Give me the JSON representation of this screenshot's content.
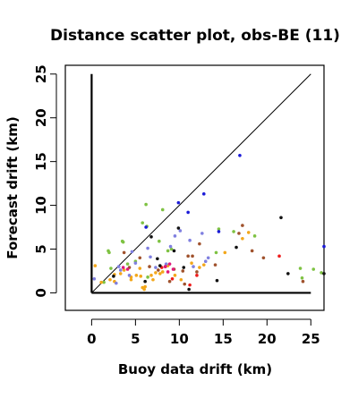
{
  "chart_data": {
    "type": "scatter",
    "title": "Distance scatter plot, obs-BE (11)",
    "xlabel": "Buoy data drift (km)",
    "ylabel": "Forecast drift (km)",
    "xlim": [
      -3,
      26.5
    ],
    "ylim": [
      -2,
      26
    ],
    "x_ticks": [
      0,
      5,
      10,
      15,
      20,
      25
    ],
    "y_ticks": [
      0,
      5,
      10,
      15,
      20,
      25
    ],
    "x_tick_labels": [
      "0",
      "5",
      "10",
      "15",
      "20",
      "25"
    ],
    "y_tick_labels": [
      "0",
      "5",
      "10",
      "15",
      "20",
      "25"
    ],
    "grid": false,
    "reference_lines": [
      {
        "x": [
          0,
          25
        ],
        "y": [
          0,
          25
        ]
      },
      {
        "x": [
          0,
          0
        ],
        "y": [
          0,
          25
        ]
      },
      {
        "x": [
          0,
          25
        ],
        "y": [
          0,
          0
        ]
      }
    ],
    "series": [
      {
        "color": "#7ec242",
        "points": [
          [
            1.9,
            4.8
          ],
          [
            2.0,
            4.6
          ],
          [
            3.5,
            5.9
          ],
          [
            3.6,
            5.8
          ],
          [
            5.8,
            8.0
          ],
          [
            6.2,
            10.1
          ],
          [
            6.3,
            7.6
          ],
          [
            8.1,
            9.5
          ],
          [
            7.7,
            5.9
          ],
          [
            8.7,
            4.8
          ],
          [
            9.1,
            5.0
          ],
          [
            5.0,
            3.6
          ],
          [
            2.2,
            2.8
          ],
          [
            14.2,
            4.6
          ],
          [
            14.5,
            7.3
          ],
          [
            16.2,
            7.0
          ],
          [
            18.6,
            6.5
          ],
          [
            23.8,
            2.8
          ],
          [
            25.3,
            2.7
          ],
          [
            26.2,
            2.3
          ],
          [
            24.0,
            1.7
          ],
          [
            6.4,
            1.8
          ],
          [
            4.1,
            3.3
          ],
          [
            1.4,
            1.2
          ]
        ]
      },
      {
        "color": "#f3a71b",
        "points": [
          [
            0.4,
            3.1
          ],
          [
            1.1,
            1.2
          ],
          [
            2.1,
            1.5
          ],
          [
            2.6,
            2.1
          ],
          [
            3.3,
            2.2
          ],
          [
            3.7,
            2.6
          ],
          [
            4.5,
            1.8
          ],
          [
            5.1,
            2.0
          ],
          [
            5.6,
            1.9
          ],
          [
            5.8,
            0.6
          ],
          [
            6.1,
            0.7
          ],
          [
            6.0,
            0.4
          ],
          [
            5.5,
            2.8
          ],
          [
            6.8,
            2.0
          ],
          [
            7.3,
            2.3
          ],
          [
            7.8,
            2.2
          ],
          [
            8.1,
            2.4
          ],
          [
            8.7,
            3.1
          ],
          [
            9.5,
            2.0
          ],
          [
            10.2,
            1.5
          ],
          [
            11.4,
            3.4
          ],
          [
            12.3,
            2.9
          ],
          [
            12.8,
            3.2
          ],
          [
            15.2,
            4.6
          ],
          [
            17.2,
            6.2
          ],
          [
            17.9,
            6.9
          ],
          [
            2.6,
            1.3
          ],
          [
            4.5,
            1.5
          ],
          [
            7.0,
            1.5
          ]
        ]
      },
      {
        "color": "#8080e0",
        "points": [
          [
            3.1,
            3.0
          ],
          [
            3.3,
            2.6
          ],
          [
            4.3,
            2.0
          ],
          [
            5.0,
            3.4
          ],
          [
            6.4,
            5.1
          ],
          [
            6.7,
            4.1
          ],
          [
            7.3,
            2.9
          ],
          [
            8.5,
            3.3
          ],
          [
            9.5,
            6.5
          ],
          [
            10.1,
            7.1
          ],
          [
            11.2,
            6.0
          ],
          [
            12.6,
            6.8
          ],
          [
            13.0,
            3.6
          ],
          [
            13.3,
            4.0
          ],
          [
            11.6,
            3.0
          ],
          [
            0.3,
            1.6
          ],
          [
            2.8,
            1.1
          ],
          [
            4.6,
            4.7
          ],
          [
            9.0,
            5.3
          ]
        ]
      },
      {
        "color": "#a0522d",
        "points": [
          [
            4.3,
            2.9
          ],
          [
            5.5,
            4.0
          ],
          [
            6.6,
            3.0
          ],
          [
            7.6,
            2.6
          ],
          [
            8.4,
            3.0
          ],
          [
            8.9,
            1.3
          ],
          [
            9.4,
            2.7
          ],
          [
            10.6,
            1.0
          ],
          [
            11.0,
            4.2
          ],
          [
            11.5,
            4.2
          ],
          [
            12.0,
            2.4
          ],
          [
            12.3,
            5.6
          ],
          [
            14.1,
            3.2
          ],
          [
            16.8,
            6.8
          ],
          [
            17.2,
            7.7
          ],
          [
            18.3,
            4.8
          ],
          [
            19.6,
            4.0
          ],
          [
            24.1,
            1.3
          ],
          [
            10.4,
            2.5
          ],
          [
            3.7,
            4.6
          ]
        ]
      },
      {
        "color": "#e0187a",
        "points": [
          [
            3.6,
            2.9
          ],
          [
            4.1,
            2.7
          ],
          [
            8.4,
            3.0
          ],
          [
            8.9,
            3.3
          ],
          [
            9.3,
            2.7
          ],
          [
            8.7,
            2.4
          ]
        ]
      },
      {
        "color": "#ee1c1c",
        "points": [
          [
            9.2,
            1.6
          ],
          [
            11.2,
            0.9
          ],
          [
            12.0,
            2.0
          ],
          [
            21.4,
            4.2
          ],
          [
            8.0,
            2.9
          ]
        ]
      },
      {
        "color": "#111111",
        "points": [
          [
            6.1,
            1.3
          ],
          [
            7.8,
            3.1
          ],
          [
            9.9,
            7.4
          ],
          [
            10.5,
            2.9
          ],
          [
            11.1,
            0.4
          ],
          [
            14.3,
            1.4
          ],
          [
            16.5,
            5.2
          ],
          [
            21.6,
            8.6
          ],
          [
            22.4,
            2.2
          ],
          [
            26.5,
            2.2
          ],
          [
            2.5,
            1.9
          ],
          [
            9.4,
            4.8
          ],
          [
            7.5,
            3.9
          ],
          [
            6.8,
            6.4
          ]
        ]
      },
      {
        "color": "#1a1ad8",
        "points": [
          [
            6.2,
            7.5
          ],
          [
            9.9,
            10.3
          ],
          [
            11.0,
            9.2
          ],
          [
            12.8,
            11.3
          ],
          [
            14.5,
            7.0
          ],
          [
            16.9,
            15.7
          ],
          [
            26.5,
            5.3
          ]
        ]
      }
    ]
  }
}
